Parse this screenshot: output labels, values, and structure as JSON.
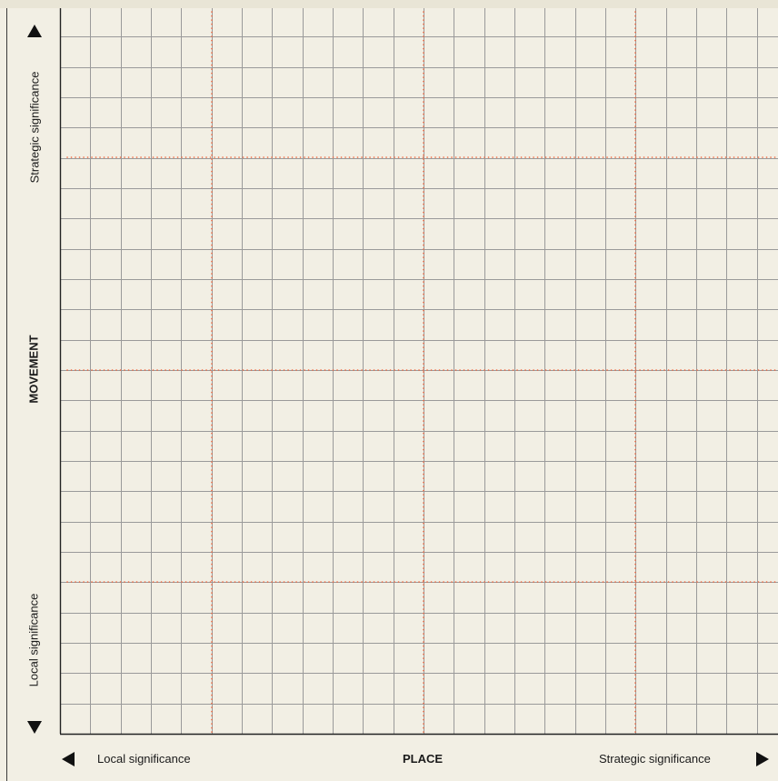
{
  "y_axis": {
    "title": "MOVEMENT",
    "top_label": "Strategic significance",
    "bottom_label": "Local significance"
  },
  "x_axis": {
    "title": "PLACE",
    "left_label": "Local significance",
    "right_label": "Strategic significance"
  },
  "colors": {
    "background": "#f2efe4",
    "grid_line": "#9a9a9a",
    "axis_line": "#222222",
    "divider_dotted": "#f0643c"
  },
  "icons": {
    "up": "arrow-up-icon",
    "down": "arrow-down-icon",
    "left": "arrow-left-icon",
    "right": "arrow-right-icon"
  }
}
